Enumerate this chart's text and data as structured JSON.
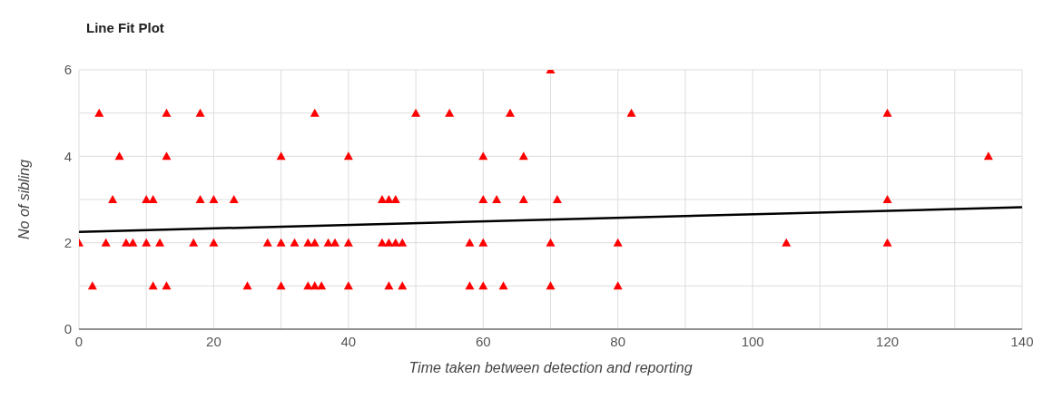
{
  "chart_data": {
    "type": "scatter",
    "title": "Line Fit Plot",
    "xlabel": "Time taken between detection and reporting",
    "ylabel": "No of sibling",
    "xlim": [
      0,
      140
    ],
    "xticks": [
      0,
      {
        "value": 10,
        "label": null
      },
      20,
      {
        "value": 30,
        "label": null
      },
      40,
      {
        "value": 50,
        "label": null
      },
      60,
      {
        "value": 70,
        "label": null
      },
      80,
      {
        "value": 90,
        "label": null
      },
      100,
      {
        "value": 110,
        "label": null
      },
      120,
      {
        "value": 130,
        "label": null
      },
      140
    ],
    "ylim": [
      0,
      6
    ],
    "yticks": [
      0,
      {
        "value": 1,
        "label": null
      },
      2,
      {
        "value": 3,
        "label": null
      },
      4,
      {
        "value": 5,
        "label": null
      },
      6
    ],
    "grid": true,
    "marker": "triangle",
    "series": [
      {
        "color": "#ff0000",
        "x": [
          3,
          13,
          18,
          35,
          50,
          55,
          64,
          82,
          120,
          70,
          6,
          13,
          30,
          40,
          60,
          66,
          135,
          5,
          10,
          11,
          18,
          20,
          23,
          45,
          46,
          47,
          60,
          62,
          66,
          71,
          120,
          0,
          4,
          7,
          8,
          10,
          12,
          17,
          20,
          28,
          30,
          32,
          34,
          35,
          37,
          38,
          40,
          45,
          46,
          47,
          48,
          58,
          60,
          70,
          80,
          105,
          120,
          2,
          11,
          13,
          25,
          30,
          34,
          35,
          36,
          40,
          46,
          48,
          58,
          60,
          63,
          70,
          80
        ],
        "values": [
          5,
          5,
          5,
          5,
          5,
          5,
          5,
          5,
          5,
          6,
          4,
          4,
          4,
          4,
          4,
          4,
          4,
          3,
          3,
          3,
          3,
          3,
          3,
          3,
          3,
          3,
          3,
          3,
          3,
          3,
          3,
          2,
          2,
          2,
          2,
          2,
          2,
          2,
          2,
          2,
          2,
          2,
          2,
          2,
          2,
          2,
          2,
          2,
          2,
          2,
          2,
          2,
          2,
          2,
          2,
          2,
          2,
          1,
          1,
          1,
          1,
          1,
          1,
          1,
          1,
          1,
          1,
          1,
          1,
          1,
          1,
          1,
          1
        ]
      },
      {
        "type": "line",
        "color": "#000000",
        "marker": "none",
        "x": [
          0,
          140
        ],
        "values": [
          2.25,
          2.82
        ]
      }
    ]
  }
}
